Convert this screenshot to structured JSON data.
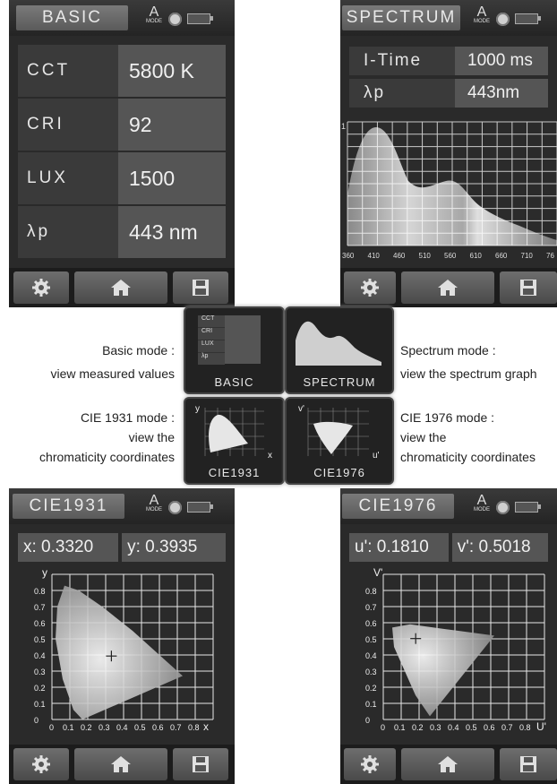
{
  "basic": {
    "title": "BASIC",
    "status_mode": "A",
    "status_mode_sub": "MODE",
    "rows": [
      {
        "label": "CCT",
        "value": "5800 K"
      },
      {
        "label": "CRI",
        "value": "92"
      },
      {
        "label": "LUX",
        "value": "1500"
      },
      {
        "label": "λp",
        "value": "443 nm"
      }
    ]
  },
  "spectrum": {
    "title": "SPECTRUM",
    "status_mode": "A",
    "status_mode_sub": "MODE",
    "rows": [
      {
        "label": "I-Time",
        "value": "1000 ms"
      },
      {
        "label": "λp",
        "value": "443nm"
      }
    ],
    "graph": {
      "y_top_label": "1",
      "x_ticks": [
        "360",
        "410",
        "460",
        "510",
        "560",
        "610",
        "660",
        "710",
        "76"
      ]
    }
  },
  "cie1931": {
    "title": "CIE1931",
    "status_mode": "A",
    "status_mode_sub": "MODE",
    "x_text": "x: 0.3320",
    "y_text": "y: 0.3935",
    "axis_y": "y",
    "axis_x": "x",
    "y_ticks": [
      "0.8",
      "0.7",
      "0.6",
      "0.5",
      "0.4",
      "0.3",
      "0.2",
      "0.1",
      "0"
    ],
    "x_ticks": [
      "0",
      "0.1",
      "0.2",
      "0.3",
      "0.4",
      "0.5",
      "0.6",
      "0.7",
      "0.8"
    ],
    "point": {
      "x": 0.332,
      "y": 0.3935
    }
  },
  "cie1976": {
    "title": "CIE1976",
    "status_mode": "A",
    "status_mode_sub": "MODE",
    "u_text": "u': 0.1810",
    "v_text": "v': 0.5018",
    "axis_y": "V'",
    "axis_x": "U'",
    "y_ticks": [
      "0.8",
      "0.7",
      "0.6",
      "0.5",
      "0.4",
      "0.3",
      "0.2",
      "0.1",
      "0"
    ],
    "x_ticks": [
      "0",
      "0.1",
      "0.2",
      "0.3",
      "0.4",
      "0.5",
      "0.6",
      "0.7",
      "0.8"
    ],
    "point": {
      "u": 0.181,
      "v": 0.5018
    }
  },
  "modes": {
    "basic": {
      "icon_label": "BASIC",
      "icon_rows": [
        "CCT",
        "CRI",
        "LUX",
        "λp"
      ],
      "desc_title": "Basic mode :",
      "desc_body": "view measured values"
    },
    "spectrum": {
      "icon_label": "SPECTRUM",
      "desc_title": "Spectrum mode :",
      "desc_body": "view the spectrum graph"
    },
    "cie1931": {
      "icon_label": "CIE1931",
      "axis_y": "y",
      "axis_x": "x",
      "desc_title": "CIE 1931 mode :",
      "desc_body1": "view the",
      "desc_body2": "chromaticity coordinates"
    },
    "cie1976": {
      "icon_label": "CIE1976",
      "axis_y": "v'",
      "axis_x": "u'",
      "desc_title": "CIE 1976 mode :",
      "desc_body1": "view the",
      "desc_body2": "chromaticity coordinates"
    }
  }
}
